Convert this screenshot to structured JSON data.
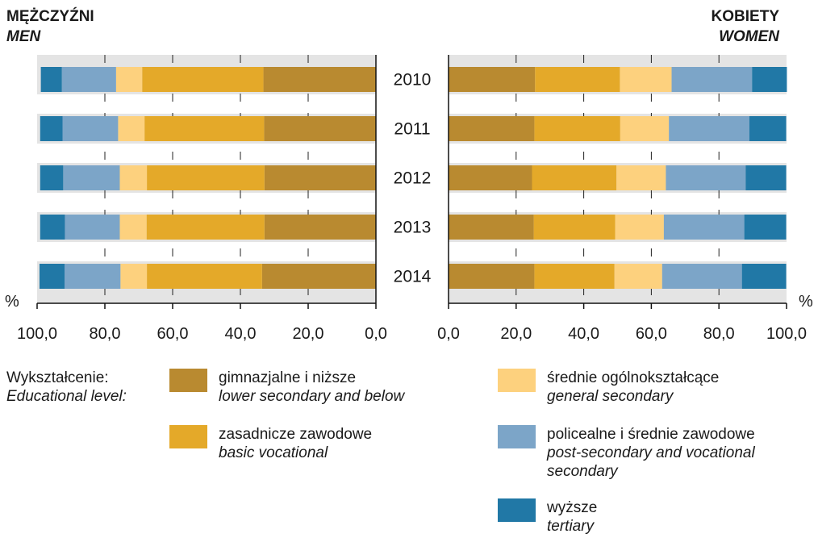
{
  "panels": {
    "men": {
      "title": "MĘŻCZYŹNI",
      "subtitle": "MEN"
    },
    "women": {
      "title": "KOBIETY",
      "subtitle": "WOMEN"
    }
  },
  "percent_symbol": "%",
  "legend": {
    "heading_pl": "Wykształcenie:",
    "heading_en": "Educational level:"
  },
  "chart_data": {
    "type": "bar",
    "orientation": "horizontal",
    "stacked": true,
    "unit": "%",
    "categories": [
      "2010",
      "2011",
      "2012",
      "2013",
      "2014"
    ],
    "xlim": [
      0,
      100
    ],
    "xticks": [
      "0,0",
      "20,0",
      "40,0",
      "60,0",
      "80,0",
      "100,0"
    ],
    "grid": "dashed vertical",
    "series_order": [
      "lower_secondary",
      "basic_vocational",
      "general_secondary",
      "post_secondary",
      "tertiary"
    ],
    "series_meta": {
      "lower_secondary": {
        "name_pl": "gimnazjalne i niższe",
        "name_en": "lower secondary and below",
        "color": "#B98A30"
      },
      "basic_vocational": {
        "name_pl": "zasadnicze zawodowe",
        "name_en": "basic vocational",
        "color": "#E4A929"
      },
      "general_secondary": {
        "name_pl": "średnie ogólnokształcące",
        "name_en": "general secondary",
        "color": "#FDD17E"
      },
      "post_secondary": {
        "name_pl": "policealne i średnie zawodowe",
        "name_en": "post-secondary and vocational secondary",
        "color": "#7CA5C8"
      },
      "tertiary": {
        "name_pl": "wyższe",
        "name_en": "tertiary",
        "color": "#2178A6"
      }
    },
    "men": {
      "lower_secondary": [
        33.2,
        33.0,
        32.9,
        32.9,
        33.6
      ],
      "basic_vocational": [
        35.8,
        35.3,
        34.7,
        34.8,
        34.0
      ],
      "general_secondary": [
        7.7,
        7.8,
        8.0,
        7.9,
        7.8
      ],
      "post_secondary": [
        16.0,
        16.4,
        16.7,
        16.2,
        16.5
      ],
      "tertiary": [
        6.2,
        6.6,
        6.8,
        7.3,
        7.4
      ]
    },
    "women": {
      "lower_secondary": [
        25.6,
        25.4,
        24.7,
        25.2,
        25.4
      ],
      "basic_vocational": [
        25.1,
        25.4,
        25.0,
        24.1,
        23.7
      ],
      "general_secondary": [
        15.3,
        14.4,
        14.6,
        14.4,
        14.1
      ],
      "post_secondary": [
        23.8,
        23.8,
        23.6,
        23.8,
        23.6
      ],
      "tertiary": [
        10.3,
        10.9,
        12.0,
        12.4,
        13.1
      ]
    }
  }
}
